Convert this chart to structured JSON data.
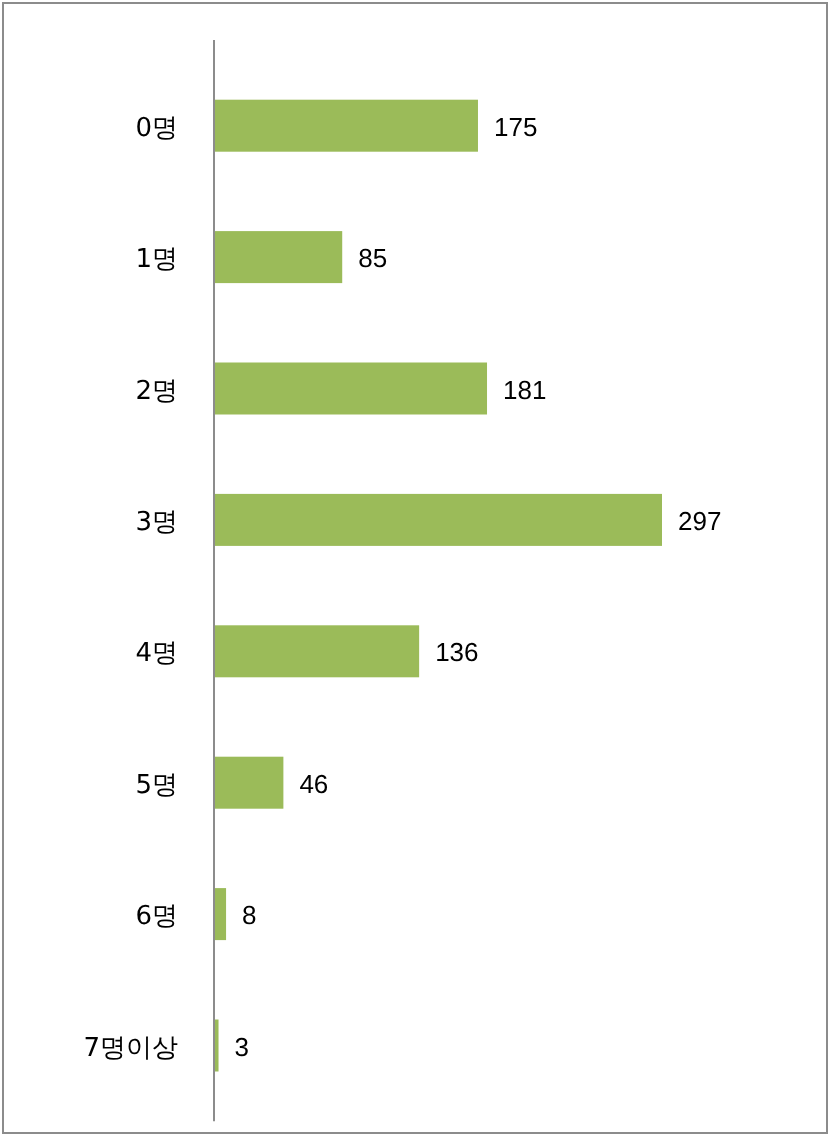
{
  "chart_data": {
    "type": "bar",
    "orientation": "horizontal",
    "categories": [
      "0명",
      "1명",
      "2명",
      "3명",
      "4명",
      "5명",
      "6명",
      "7명이상"
    ],
    "values": [
      175,
      85,
      181,
      297,
      136,
      46,
      8,
      3
    ],
    "color": "#9bbb59",
    "data_labels": true
  }
}
